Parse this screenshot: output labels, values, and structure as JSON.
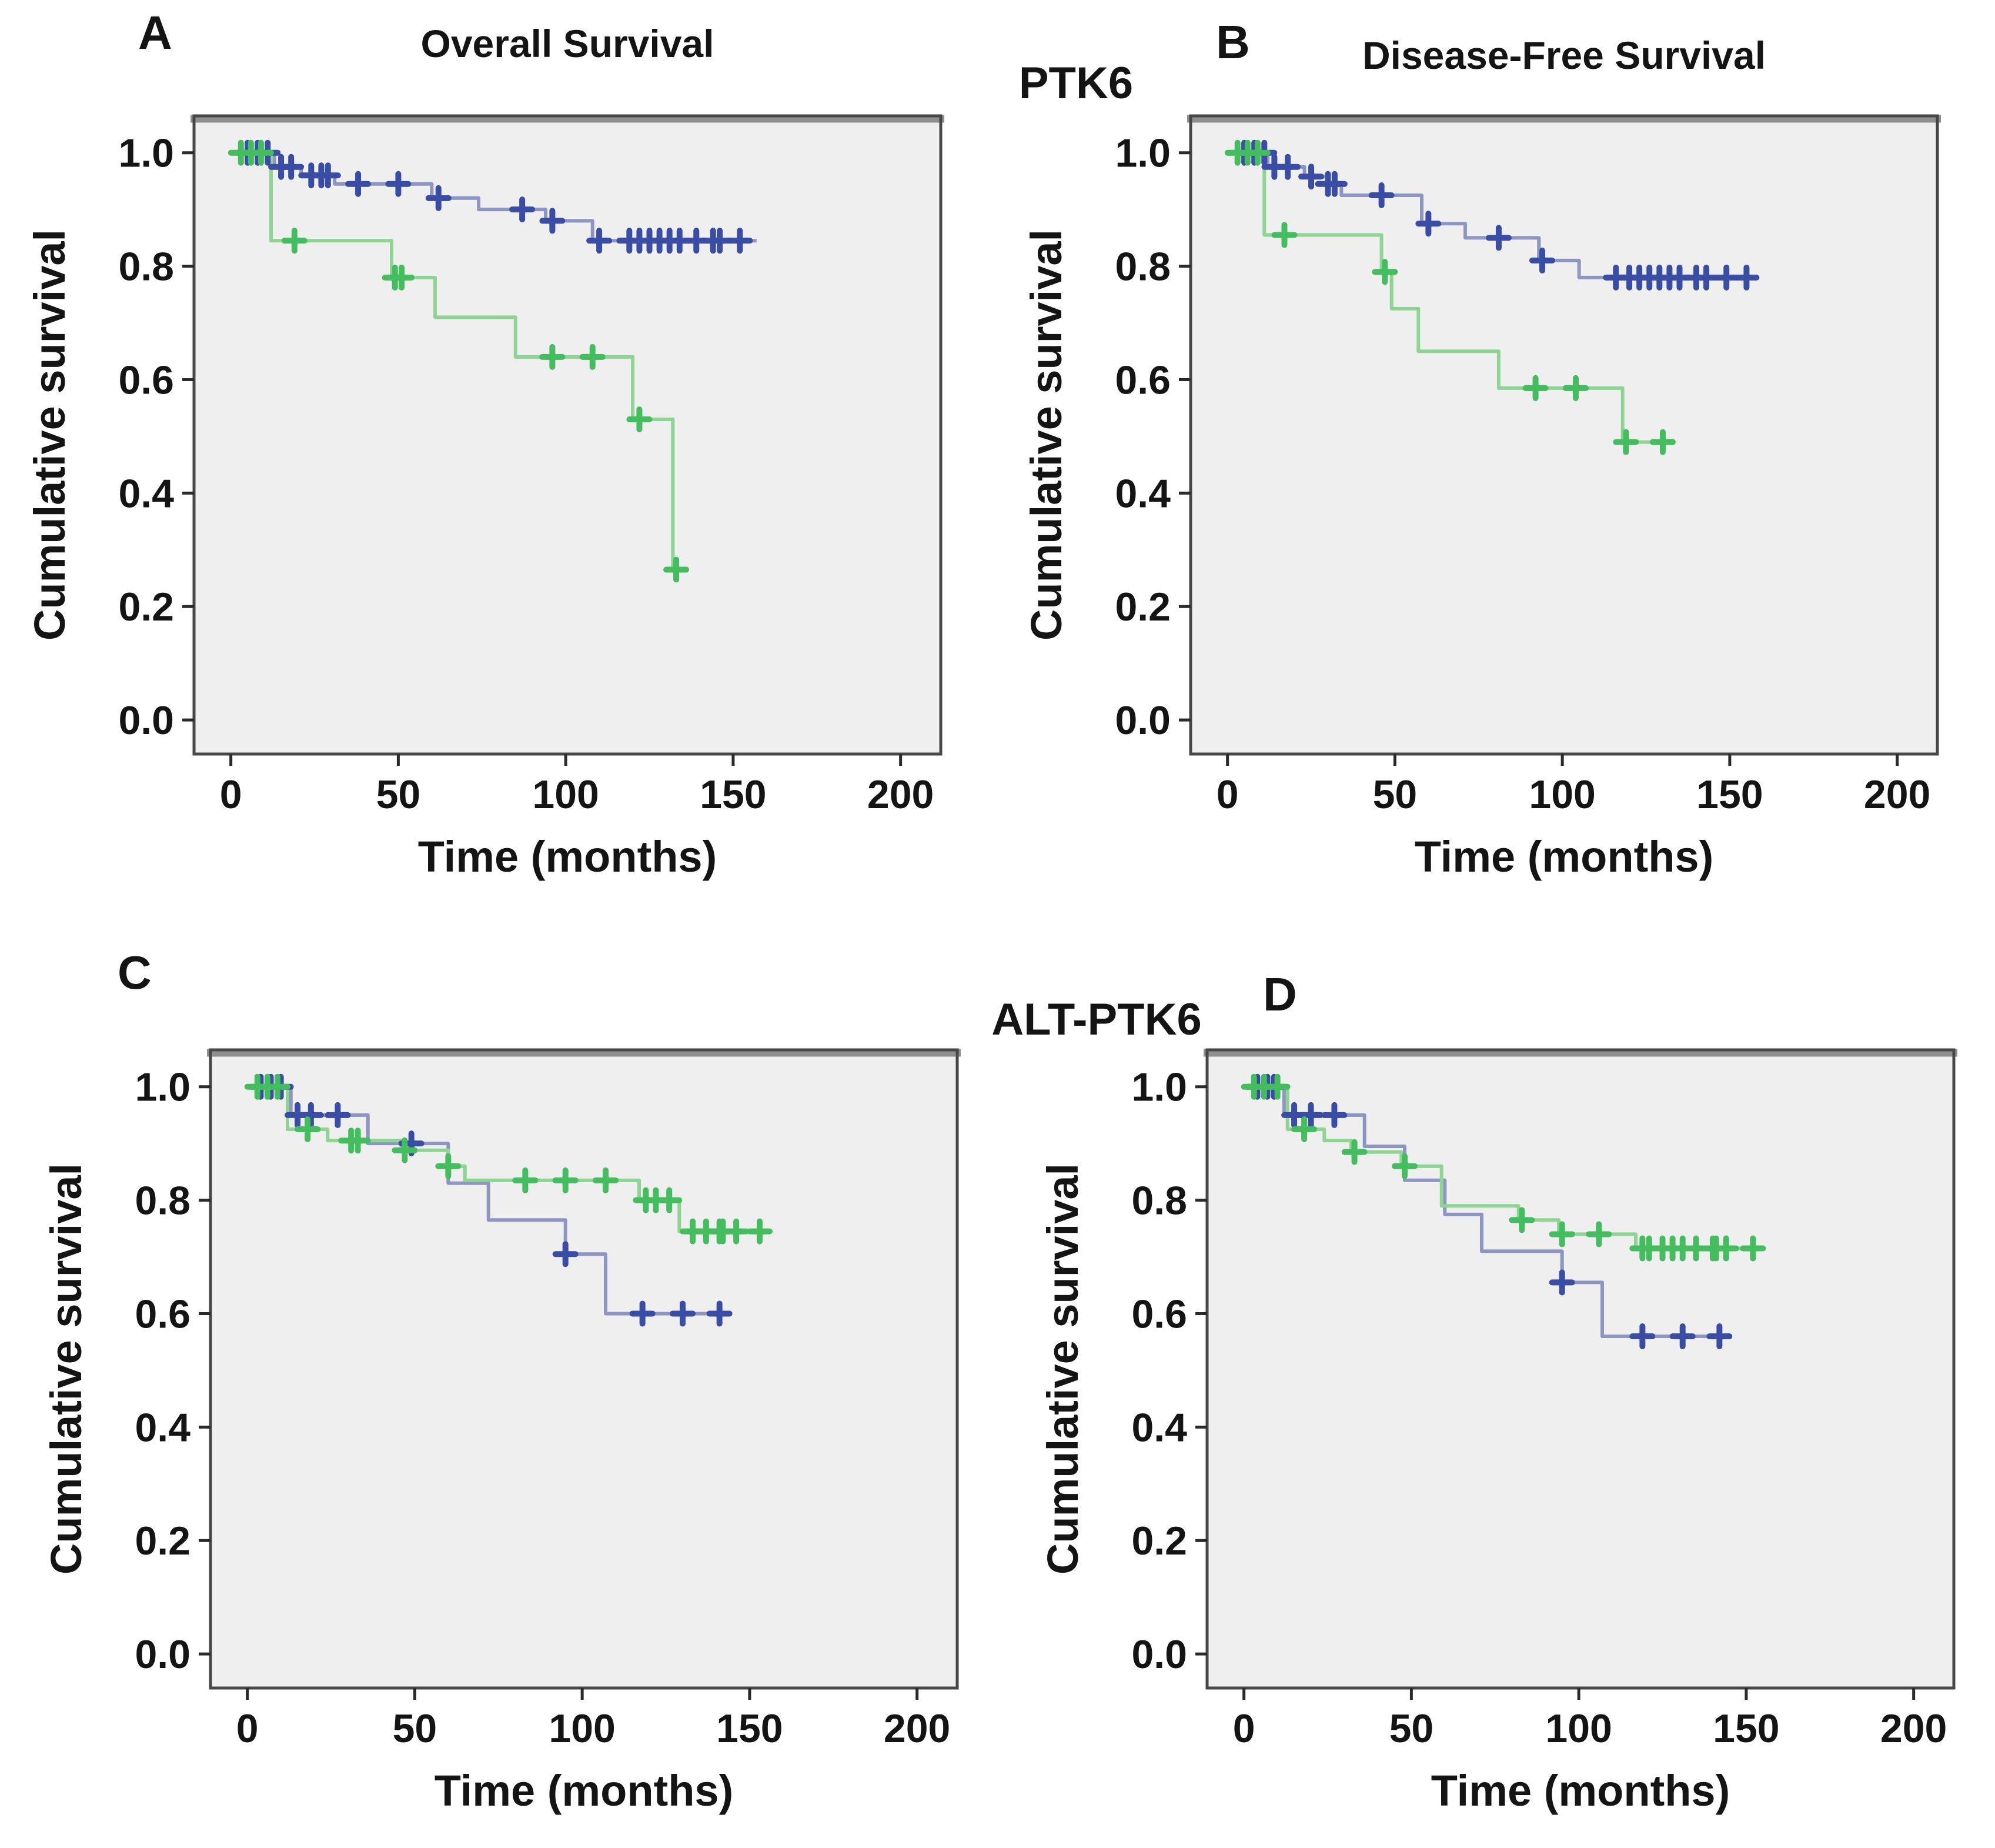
{
  "figure": {
    "panels": [
      {
        "label": "A",
        "title": "Overall Survival"
      },
      {
        "label": "B",
        "title": "Disease-Free Survival"
      },
      {
        "label": "C",
        "title": ""
      },
      {
        "label": "D",
        "title": ""
      }
    ],
    "group_titles": {
      "top": "PTK6",
      "bottom": "ALT-PTK6"
    }
  },
  "colors": {
    "blue_line": "#8d96c3",
    "blue_marker": "#3a4da5",
    "green_line": "#8ed493",
    "green_marker": "#44bd5e",
    "plot_bg": "#efefef",
    "frame": "#474747",
    "frame_top": "#8f8f8f",
    "tick": "#2a2a2a",
    "text": "#141414"
  },
  "chart_data": [
    {
      "id": "A",
      "type": "line",
      "subtype": "kaplan-meier-step",
      "title": "Overall Survival",
      "group": "PTK6",
      "xlabel": "Time (months)",
      "ylabel": "Cumulative survival",
      "xticks": [
        0,
        50,
        100,
        150,
        200
      ],
      "yticks": [
        "0.0",
        "0.2",
        "0.4",
        "0.6",
        "0.8",
        "1.0"
      ],
      "xlim": [
        -11,
        212
      ],
      "ylim": [
        -0.06,
        1.065
      ],
      "grid": false,
      "legend": "none",
      "series": [
        {
          "name": "blue",
          "color_key": "blue",
          "steps": [
            [
              0,
              1.0
            ],
            [
              13,
              0.975
            ],
            [
              21,
              0.96
            ],
            [
              31,
              0.945
            ],
            [
              60,
              0.92
            ],
            [
              74,
              0.9
            ],
            [
              94,
              0.88
            ],
            [
              108,
              0.845
            ],
            [
              157,
              0.845
            ]
          ],
          "censors": [
            [
              5,
              1.0
            ],
            [
              8,
              1.0
            ],
            [
              11,
              1.0
            ],
            [
              15,
              0.975
            ],
            [
              18,
              0.975
            ],
            [
              24,
              0.96
            ],
            [
              27,
              0.96
            ],
            [
              29,
              0.96
            ],
            [
              38,
              0.945
            ],
            [
              50,
              0.945
            ],
            [
              62,
              0.92
            ],
            [
              87,
              0.9
            ],
            [
              96,
              0.88
            ],
            [
              110,
              0.845
            ],
            [
              119,
              0.845
            ],
            [
              122,
              0.845
            ],
            [
              125,
              0.845
            ],
            [
              128,
              0.845
            ],
            [
              131,
              0.845
            ],
            [
              134,
              0.845
            ],
            [
              139,
              0.845
            ],
            [
              144,
              0.845
            ],
            [
              146,
              0.845
            ],
            [
              152,
              0.845
            ]
          ]
        },
        {
          "name": "green",
          "color_key": "green",
          "steps": [
            [
              0,
              1.0
            ],
            [
              12,
              0.845
            ],
            [
              48,
              0.78
            ],
            [
              61,
              0.71
            ],
            [
              85,
              0.64
            ],
            [
              120,
              0.53
            ],
            [
              132,
              0.265
            ],
            [
              134,
              0.265
            ]
          ],
          "censors": [
            [
              3,
              1.0
            ],
            [
              6,
              1.0
            ],
            [
              9,
              1.0
            ],
            [
              19,
              0.845
            ],
            [
              49,
              0.78
            ],
            [
              51,
              0.78
            ],
            [
              96,
              0.64
            ],
            [
              108,
              0.64
            ],
            [
              122,
              0.53
            ],
            [
              133,
              0.265
            ]
          ]
        }
      ]
    },
    {
      "id": "B",
      "type": "line",
      "subtype": "kaplan-meier-step",
      "title": "Disease-Free Survival",
      "group": "PTK6",
      "xlabel": "Time (months)",
      "ylabel": "Cumulative survival",
      "xticks": [
        0,
        50,
        100,
        150,
        200
      ],
      "yticks": [
        "0.0",
        "0.2",
        "0.4",
        "0.6",
        "0.8",
        "1.0"
      ],
      "xlim": [
        -11,
        212
      ],
      "ylim": [
        -0.06,
        1.065
      ],
      "grid": false,
      "legend": "none",
      "series": [
        {
          "name": "blue",
          "color_key": "blue",
          "steps": [
            [
              0,
              1.0
            ],
            [
              12,
              0.975
            ],
            [
              23,
              0.958
            ],
            [
              30,
              0.945
            ],
            [
              34,
              0.925
            ],
            [
              58,
              0.875
            ],
            [
              71,
              0.85
            ],
            [
              93,
              0.81
            ],
            [
              105,
              0.78
            ],
            [
              156,
              0.78
            ]
          ],
          "censors": [
            [
              5,
              1.0
            ],
            [
              8,
              1.0
            ],
            [
              11,
              1.0
            ],
            [
              14,
              0.975
            ],
            [
              18,
              0.975
            ],
            [
              25,
              0.958
            ],
            [
              30,
              0.945
            ],
            [
              32,
              0.945
            ],
            [
              46,
              0.925
            ],
            [
              60,
              0.875
            ],
            [
              81,
              0.85
            ],
            [
              94,
              0.81
            ],
            [
              116,
              0.78
            ],
            [
              120,
              0.78
            ],
            [
              123,
              0.78
            ],
            [
              126,
              0.78
            ],
            [
              129,
              0.78
            ],
            [
              132,
              0.78
            ],
            [
              135,
              0.78
            ],
            [
              140,
              0.78
            ],
            [
              143,
              0.78
            ],
            [
              149,
              0.78
            ],
            [
              155,
              0.78
            ]
          ]
        },
        {
          "name": "green",
          "color_key": "green",
          "steps": [
            [
              0,
              1.0
            ],
            [
              11,
              0.855
            ],
            [
              46,
              0.79
            ],
            [
              49,
              0.725
            ],
            [
              57,
              0.65
            ],
            [
              81,
              0.585
            ],
            [
              118,
              0.49
            ],
            [
              131,
              0.49
            ]
          ],
          "censors": [
            [
              3,
              1.0
            ],
            [
              6,
              1.0
            ],
            [
              9,
              1.0
            ],
            [
              17,
              0.855
            ],
            [
              47,
              0.79
            ],
            [
              92,
              0.585
            ],
            [
              104,
              0.585
            ],
            [
              119,
              0.49
            ],
            [
              130,
              0.49
            ]
          ]
        }
      ]
    },
    {
      "id": "C",
      "type": "line",
      "subtype": "kaplan-meier-step",
      "title": "",
      "group": "ALT-PTK6",
      "xlabel": "Time (months)",
      "ylabel": "Cumulative survival",
      "xticks": [
        0,
        50,
        100,
        150,
        200
      ],
      "yticks": [
        "0.0",
        "0.2",
        "0.4",
        "0.6",
        "0.8",
        "1.0"
      ],
      "xlim": [
        -11,
        212
      ],
      "ylim": [
        -0.06,
        1.065
      ],
      "grid": false,
      "legend": "none",
      "series": [
        {
          "name": "blue",
          "color_key": "blue",
          "steps": [
            [
              0,
              1.0
            ],
            [
              13,
              0.95
            ],
            [
              36,
              0.9
            ],
            [
              60,
              0.83
            ],
            [
              72,
              0.765
            ],
            [
              95,
              0.705
            ],
            [
              107,
              0.6
            ],
            [
              143,
              0.6
            ]
          ],
          "censors": [
            [
              4,
              1.0
            ],
            [
              7,
              1.0
            ],
            [
              10,
              1.0
            ],
            [
              15,
              0.95
            ],
            [
              19,
              0.95
            ],
            [
              27,
              0.95
            ],
            [
              49,
              0.9
            ],
            [
              95,
              0.705
            ],
            [
              118,
              0.6
            ],
            [
              130,
              0.6
            ],
            [
              141,
              0.6
            ]
          ]
        },
        {
          "name": "green",
          "color_key": "green",
          "steps": [
            [
              0,
              1.0
            ],
            [
              12,
              0.925
            ],
            [
              24,
              0.905
            ],
            [
              46,
              0.888
            ],
            [
              60,
              0.86
            ],
            [
              65,
              0.835
            ],
            [
              117,
              0.8
            ],
            [
              129,
              0.745
            ],
            [
              155,
              0.745
            ]
          ],
          "censors": [
            [
              3,
              1.0
            ],
            [
              6,
              1.0
            ],
            [
              9,
              1.0
            ],
            [
              18,
              0.925
            ],
            [
              31,
              0.905
            ],
            [
              33,
              0.905
            ],
            [
              47,
              0.888
            ],
            [
              60,
              0.86
            ],
            [
              83,
              0.835
            ],
            [
              95,
              0.835
            ],
            [
              107,
              0.835
            ],
            [
              119,
              0.8
            ],
            [
              122,
              0.8
            ],
            [
              126,
              0.8
            ],
            [
              133,
              0.745
            ],
            [
              137,
              0.745
            ],
            [
              141,
              0.745
            ],
            [
              142,
              0.745
            ],
            [
              146,
              0.745
            ],
            [
              153,
              0.745
            ]
          ]
        }
      ]
    },
    {
      "id": "D",
      "type": "line",
      "subtype": "kaplan-meier-step",
      "title": "",
      "group": "ALT-PTK6",
      "xlabel": "Time (months)",
      "ylabel": "Cumulative survival",
      "xticks": [
        0,
        50,
        100,
        150,
        200
      ],
      "yticks": [
        "0.0",
        "0.2",
        "0.4",
        "0.6",
        "0.8",
        "1.0"
      ],
      "xlim": [
        -11,
        212
      ],
      "ylim": [
        -0.06,
        1.065
      ],
      "grid": false,
      "legend": "none",
      "series": [
        {
          "name": "blue",
          "color_key": "blue",
          "steps": [
            [
              0,
              1.0
            ],
            [
              12,
              0.95
            ],
            [
              36,
              0.895
            ],
            [
              48,
              0.835
            ],
            [
              60,
              0.775
            ],
            [
              71,
              0.71
            ],
            [
              95,
              0.655
            ],
            [
              107,
              0.56
            ],
            [
              144,
              0.56
            ]
          ],
          "censors": [
            [
              4,
              1.0
            ],
            [
              7,
              1.0
            ],
            [
              9,
              1.0
            ],
            [
              15,
              0.95
            ],
            [
              20,
              0.95
            ],
            [
              27,
              0.95
            ],
            [
              95,
              0.655
            ],
            [
              119,
              0.56
            ],
            [
              131,
              0.56
            ],
            [
              142,
              0.56
            ]
          ]
        },
        {
          "name": "green",
          "color_key": "green",
          "steps": [
            [
              0,
              1.0
            ],
            [
              13,
              0.925
            ],
            [
              24,
              0.905
            ],
            [
              32,
              0.885
            ],
            [
              47,
              0.86
            ],
            [
              59,
              0.79
            ],
            [
              82,
              0.765
            ],
            [
              94,
              0.74
            ],
            [
              117,
              0.715
            ],
            [
              153,
              0.715
            ]
          ],
          "censors": [
            [
              3,
              1.0
            ],
            [
              6,
              1.0
            ],
            [
              10,
              1.0
            ],
            [
              18,
              0.925
            ],
            [
              33,
              0.885
            ],
            [
              48,
              0.86
            ],
            [
              83,
              0.765
            ],
            [
              95,
              0.74
            ],
            [
              106,
              0.74
            ],
            [
              119,
              0.715
            ],
            [
              121,
              0.715
            ],
            [
              125,
              0.715
            ],
            [
              128,
              0.715
            ],
            [
              131,
              0.715
            ],
            [
              135,
              0.715
            ],
            [
              140,
              0.715
            ],
            [
              141,
              0.715
            ],
            [
              144,
              0.715
            ],
            [
              152,
              0.715
            ]
          ]
        }
      ]
    }
  ]
}
